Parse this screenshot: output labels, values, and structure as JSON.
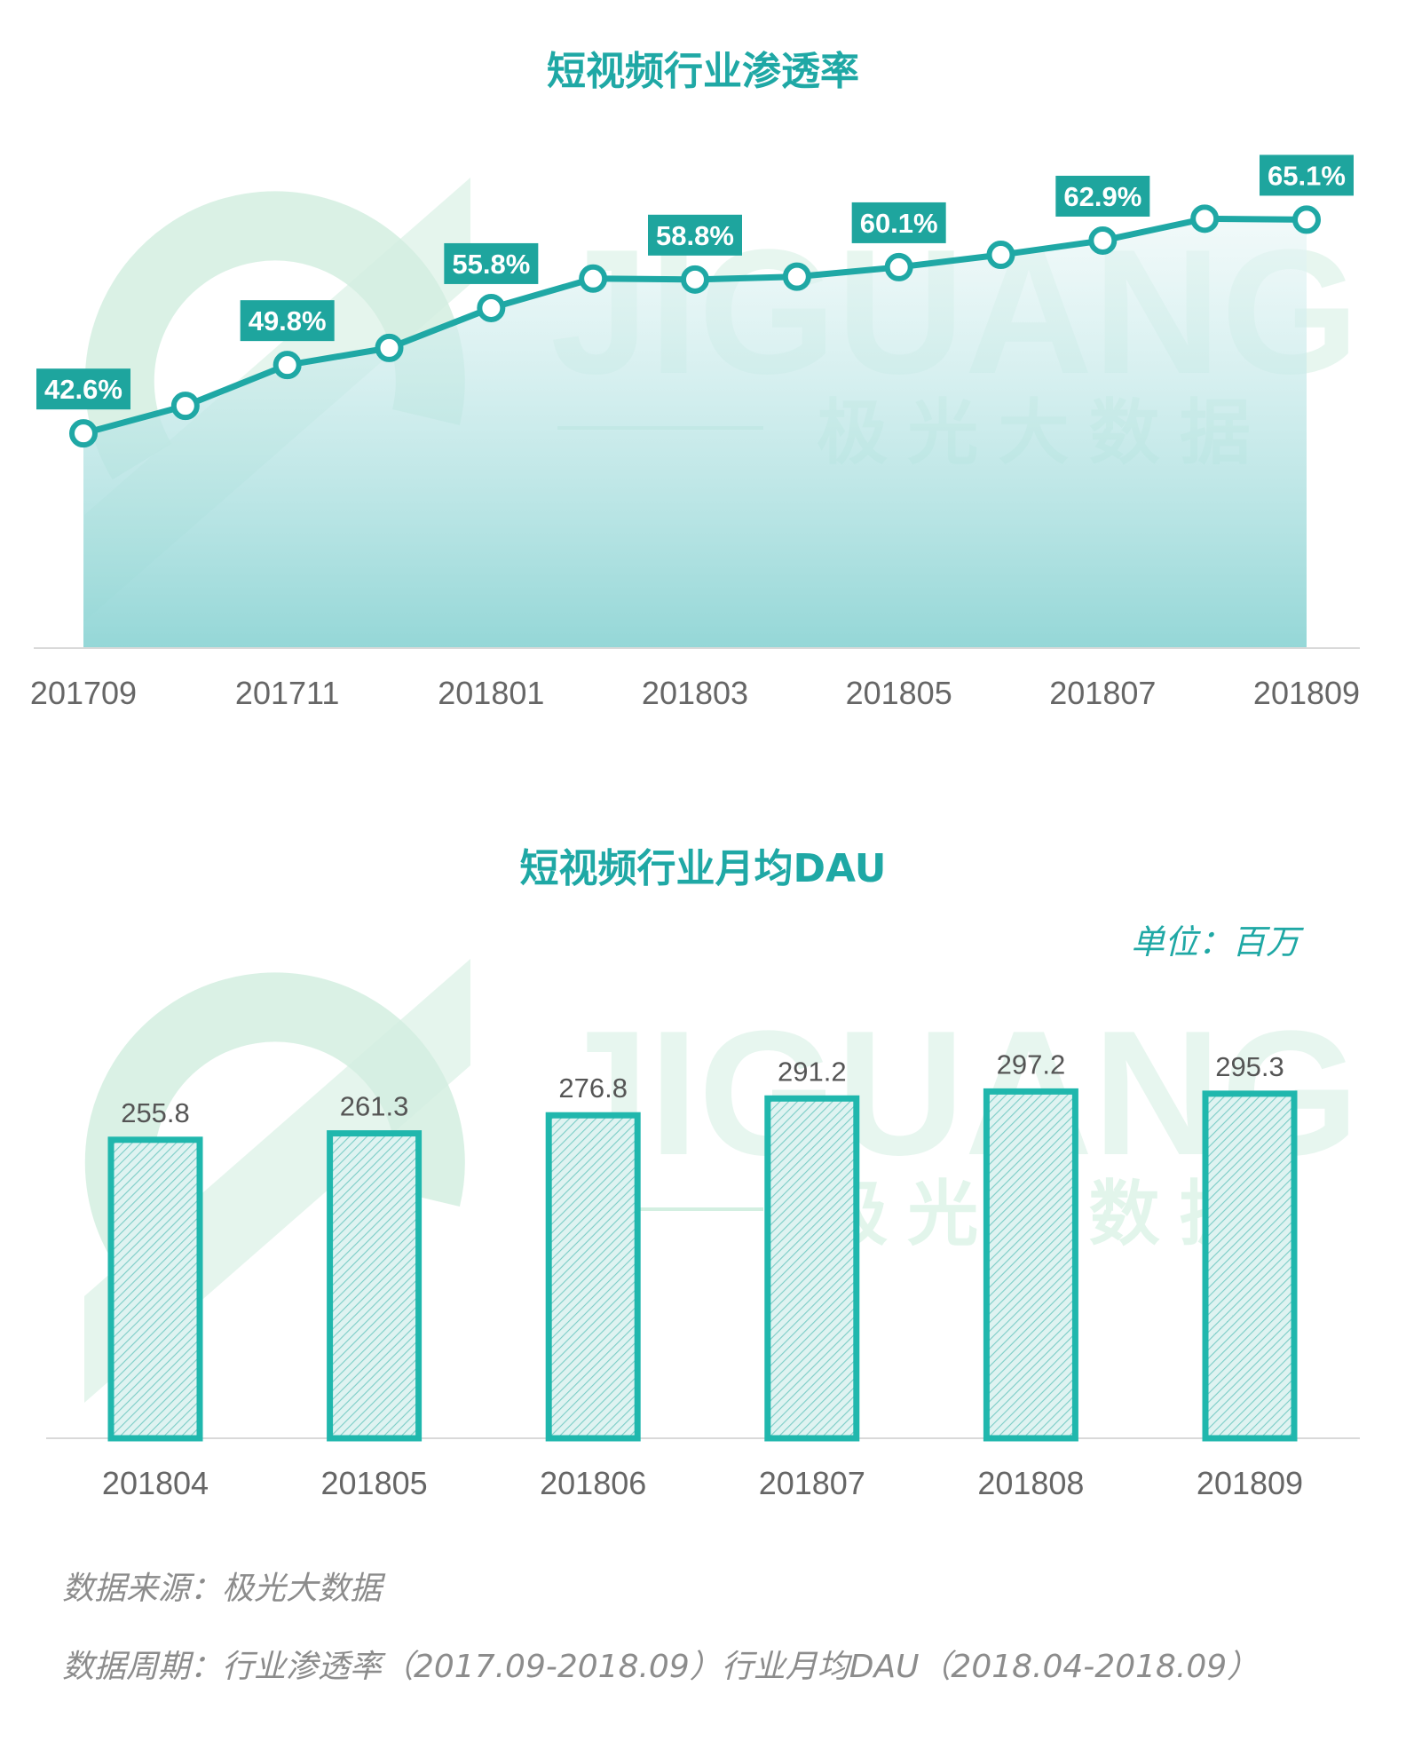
{
  "colors": {
    "teal": "#1fa8a5",
    "bar_fill": "#bfe6e2",
    "label_bg": "#1ea59e",
    "axis_text": "#666666",
    "watermark": "#d3efe1"
  },
  "watermark": {
    "brand": "JIGUANG",
    "tagline": "极 光 大 数 据"
  },
  "unit": "单位：百万",
  "footnotes": {
    "source": "数据来源：极光大数据",
    "period": "数据周期：行业渗透率（2017.09-2018.09）行业月均DAU（2018.04-2018.09）"
  },
  "chart_data": [
    {
      "type": "area",
      "title": "短视频行业渗透率",
      "xlabel": "",
      "ylabel": "",
      "categories": [
        "201709",
        "201710",
        "201711",
        "201712",
        "201801",
        "201802",
        "201803",
        "201804",
        "201805",
        "201806",
        "201807",
        "201808",
        "201809"
      ],
      "values": [
        42.6,
        45.5,
        49.8,
        51.6,
        55.8,
        58.9,
        58.8,
        59.1,
        60.1,
        61.4,
        62.9,
        65.2,
        65.1
      ],
      "data_labels": [
        {
          "index": 0,
          "text": "42.6%"
        },
        {
          "index": 2,
          "text": "49.8%"
        },
        {
          "index": 4,
          "text": "55.8%"
        },
        {
          "index": 6,
          "text": "58.8%"
        },
        {
          "index": 8,
          "text": "60.1%"
        },
        {
          "index": 10,
          "text": "62.9%"
        },
        {
          "index": 12,
          "text": "65.1%"
        }
      ],
      "x_tick_labels": [
        "201709",
        "201711",
        "201801",
        "201803",
        "201805",
        "201807",
        "201809"
      ],
      "ylim": [
        20,
        70
      ],
      "grid": false
    },
    {
      "type": "bar",
      "title": "短视频行业月均DAU",
      "xlabel": "",
      "ylabel": "",
      "categories": [
        "201804",
        "201805",
        "201806",
        "201807",
        "201808",
        "201809"
      ],
      "values": [
        255.8,
        261.3,
        276.8,
        291.2,
        297.2,
        295.3
      ],
      "value_labels": [
        "255.8",
        "261.3",
        "276.8",
        "291.2",
        "297.2",
        "295.3"
      ],
      "ylim": [
        0,
        350
      ],
      "grid": false
    }
  ]
}
